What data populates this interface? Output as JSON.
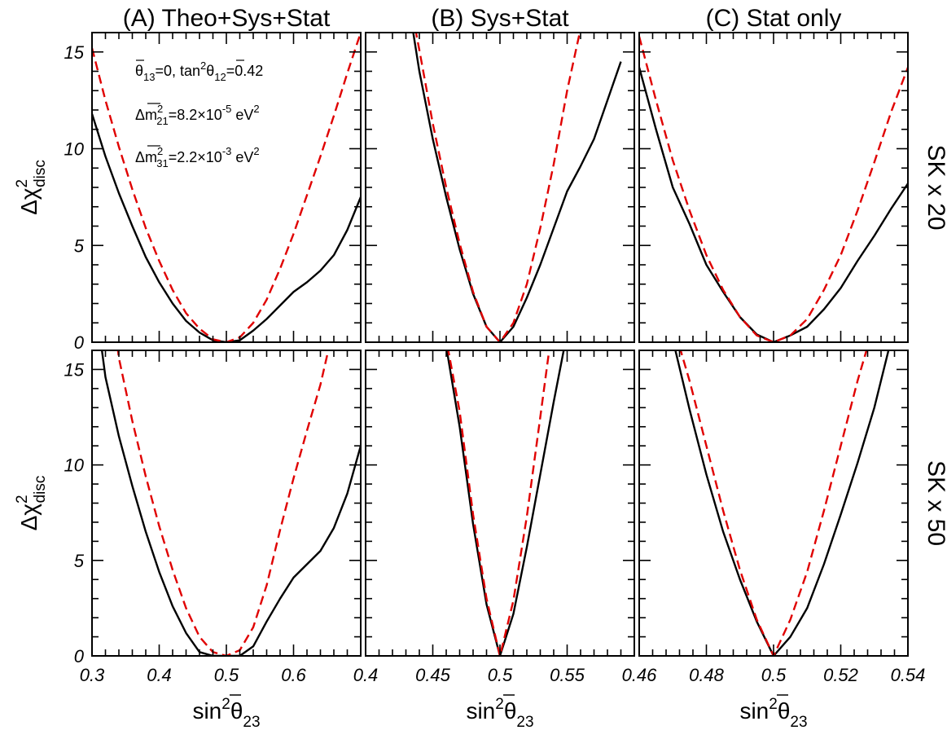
{
  "chart_data": {
    "type": "line",
    "figure_layout": "2 rows x 3 columns",
    "columns": [
      "(A) Theo+Sys+Stat",
      "(B) Sys+Stat",
      "(C) Stat only"
    ],
    "rows": [
      "SK x 20",
      "SK x 50"
    ],
    "xlabel": {
      "main": "sin",
      "sup": "2",
      "var": "θ",
      "sub": "23"
    },
    "ylabel": {
      "main": "Δχ",
      "sup": "2",
      "sub": "disc"
    },
    "ylim": [
      0,
      16
    ],
    "yticks": [
      0,
      5,
      10,
      15
    ],
    "series_styles": [
      {
        "style": "solid",
        "color": "#000000"
      },
      {
        "style": "dashed",
        "color": "#e00000"
      }
    ],
    "annotation": {
      "line1": {
        "theta13": "θ",
        "theta13_sub": "13",
        "theta13_val": "=0,",
        "tan_pre": "tan",
        "tan_sup": "2",
        "theta12": "θ",
        "theta12_sub": "12",
        "theta12_val": "=0.42"
      },
      "line2": {
        "dm": "Δm",
        "sup": "2",
        "sub": "21",
        "val": "=8.2×10",
        "exp": "-5",
        "unit": " eV",
        "unit_sup": "2"
      },
      "line3": {
        "dm": "Δm",
        "sup": "2",
        "sub": "31",
        "val": "=2.2×10",
        "exp": "-3",
        "unit": " eV",
        "unit_sup": "2"
      }
    },
    "panels": [
      {
        "col": 0,
        "row": 0,
        "xlim": [
          0.3,
          0.7
        ],
        "xticks": [
          {
            "v": 0.3,
            "t": "0.3"
          },
          {
            "v": 0.4,
            "t": "0.4"
          },
          {
            "v": 0.5,
            "t": "0.5"
          },
          {
            "v": 0.6,
            "t": "0.6"
          }
        ],
        "solid": [
          [
            0.3,
            11.8
          ],
          [
            0.32,
            9.6
          ],
          [
            0.34,
            7.7
          ],
          [
            0.36,
            6.0
          ],
          [
            0.38,
            4.4
          ],
          [
            0.4,
            3.1
          ],
          [
            0.42,
            2.0
          ],
          [
            0.44,
            1.1
          ],
          [
            0.46,
            0.5
          ],
          [
            0.48,
            0.1
          ],
          [
            0.5,
            0.0
          ],
          [
            0.52,
            0.1
          ],
          [
            0.54,
            0.6
          ],
          [
            0.56,
            1.2
          ],
          [
            0.58,
            1.9
          ],
          [
            0.6,
            2.6
          ],
          [
            0.62,
            3.1
          ],
          [
            0.64,
            3.7
          ],
          [
            0.66,
            4.5
          ],
          [
            0.68,
            5.8
          ],
          [
            0.7,
            7.5
          ]
        ],
        "dashed": [
          [
            0.3,
            15.2
          ],
          [
            0.32,
            12.5
          ],
          [
            0.34,
            10.1
          ],
          [
            0.36,
            7.9
          ],
          [
            0.38,
            5.9
          ],
          [
            0.4,
            4.2
          ],
          [
            0.42,
            2.7
          ],
          [
            0.44,
            1.5
          ],
          [
            0.46,
            0.7
          ],
          [
            0.48,
            0.15
          ],
          [
            0.5,
            0.0
          ],
          [
            0.52,
            0.25
          ],
          [
            0.54,
            1.0
          ],
          [
            0.56,
            2.2
          ],
          [
            0.58,
            3.8
          ],
          [
            0.6,
            5.6
          ],
          [
            0.62,
            7.6
          ],
          [
            0.64,
            9.6
          ],
          [
            0.66,
            11.7
          ],
          [
            0.68,
            13.9
          ],
          [
            0.7,
            16.0
          ]
        ]
      },
      {
        "col": 1,
        "row": 0,
        "xlim": [
          0.4,
          0.6
        ],
        "xticks": [
          {
            "v": 0.4,
            "t": "0.4"
          },
          {
            "v": 0.45,
            "t": "0.45"
          },
          {
            "v": 0.5,
            "t": "0.5"
          },
          {
            "v": 0.55,
            "t": "0.55"
          }
        ],
        "solid": [
          [
            0.435,
            16.2
          ],
          [
            0.44,
            14.0
          ],
          [
            0.45,
            10.5
          ],
          [
            0.46,
            7.5
          ],
          [
            0.47,
            4.8
          ],
          [
            0.48,
            2.5
          ],
          [
            0.49,
            0.8
          ],
          [
            0.5,
            0.0
          ],
          [
            0.51,
            0.8
          ],
          [
            0.52,
            2.3
          ],
          [
            0.53,
            4.0
          ],
          [
            0.54,
            5.9
          ],
          [
            0.55,
            7.8
          ],
          [
            0.56,
            9.1
          ],
          [
            0.57,
            10.5
          ],
          [
            0.58,
            12.5
          ],
          [
            0.59,
            14.5
          ]
        ],
        "dashed": [
          [
            0.437,
            16.2
          ],
          [
            0.44,
            15.1
          ],
          [
            0.45,
            11.3
          ],
          [
            0.46,
            8.0
          ],
          [
            0.47,
            5.1
          ],
          [
            0.48,
            2.6
          ],
          [
            0.49,
            0.8
          ],
          [
            0.5,
            0.0
          ],
          [
            0.51,
            1.0
          ],
          [
            0.52,
            3.0
          ],
          [
            0.53,
            5.9
          ],
          [
            0.54,
            9.2
          ],
          [
            0.55,
            13.0
          ],
          [
            0.56,
            16.2
          ]
        ]
      },
      {
        "col": 2,
        "row": 0,
        "xlim": [
          0.46,
          0.54
        ],
        "xticks": [
          {
            "v": 0.46,
            "t": "0.46"
          },
          {
            "v": 0.48,
            "t": "0.48"
          },
          {
            "v": 0.5,
            "t": "0.5"
          },
          {
            "v": 0.52,
            "t": "0.52"
          },
          {
            "v": 0.54,
            "t": "0.54"
          }
        ],
        "solid": [
          [
            0.46,
            14.2
          ],
          [
            0.465,
            11.0
          ],
          [
            0.47,
            8.0
          ],
          [
            0.475,
            6.1
          ],
          [
            0.48,
            4.0
          ],
          [
            0.485,
            2.6
          ],
          [
            0.49,
            1.3
          ],
          [
            0.495,
            0.4
          ],
          [
            0.5,
            0.0
          ],
          [
            0.505,
            0.35
          ],
          [
            0.51,
            0.8
          ],
          [
            0.515,
            1.7
          ],
          [
            0.52,
            2.8
          ],
          [
            0.525,
            4.2
          ],
          [
            0.53,
            5.5
          ],
          [
            0.535,
            6.9
          ],
          [
            0.54,
            8.2
          ]
        ],
        "dashed": [
          [
            0.46,
            15.8
          ],
          [
            0.465,
            12.5
          ],
          [
            0.47,
            9.4
          ],
          [
            0.475,
            6.8
          ],
          [
            0.48,
            4.5
          ],
          [
            0.485,
            2.7
          ],
          [
            0.49,
            1.3
          ],
          [
            0.495,
            0.35
          ],
          [
            0.5,
            0.0
          ],
          [
            0.505,
            0.35
          ],
          [
            0.51,
            1.2
          ],
          [
            0.515,
            2.7
          ],
          [
            0.52,
            4.5
          ],
          [
            0.525,
            6.8
          ],
          [
            0.53,
            9.3
          ],
          [
            0.535,
            11.9
          ],
          [
            0.54,
            14.2
          ]
        ]
      },
      {
        "col": 0,
        "row": 1,
        "xlim": [
          0.3,
          0.7
        ],
        "xticks": [
          {
            "v": 0.3,
            "t": "0.3"
          },
          {
            "v": 0.4,
            "t": "0.4"
          },
          {
            "v": 0.5,
            "t": "0.5"
          },
          {
            "v": 0.6,
            "t": "0.6"
          }
        ],
        "solid": [
          [
            0.314,
            16.2
          ],
          [
            0.32,
            14.6
          ],
          [
            0.34,
            11.5
          ],
          [
            0.36,
            8.9
          ],
          [
            0.38,
            6.5
          ],
          [
            0.4,
            4.4
          ],
          [
            0.42,
            2.6
          ],
          [
            0.44,
            1.2
          ],
          [
            0.46,
            0.2
          ],
          [
            0.48,
            0.0
          ],
          [
            0.5,
            0.0
          ],
          [
            0.52,
            0.0
          ],
          [
            0.54,
            0.5
          ],
          [
            0.56,
            1.8
          ],
          [
            0.58,
            3.0
          ],
          [
            0.6,
            4.1
          ],
          [
            0.62,
            4.8
          ],
          [
            0.64,
            5.5
          ],
          [
            0.66,
            6.7
          ],
          [
            0.68,
            8.5
          ],
          [
            0.7,
            11.0
          ]
        ],
        "dashed": [
          [
            0.338,
            16.2
          ],
          [
            0.34,
            15.6
          ],
          [
            0.36,
            12.3
          ],
          [
            0.38,
            9.4
          ],
          [
            0.4,
            6.8
          ],
          [
            0.42,
            4.5
          ],
          [
            0.44,
            2.5
          ],
          [
            0.46,
            1.0
          ],
          [
            0.48,
            0.2
          ],
          [
            0.5,
            0.0
          ],
          [
            0.52,
            0.3
          ],
          [
            0.54,
            1.5
          ],
          [
            0.56,
            3.7
          ],
          [
            0.58,
            6.6
          ],
          [
            0.6,
            9.3
          ],
          [
            0.62,
            11.8
          ],
          [
            0.64,
            14.2
          ],
          [
            0.653,
            16.2
          ]
        ]
      },
      {
        "col": 1,
        "row": 1,
        "xlim": [
          0.4,
          0.6
        ],
        "xticks": [
          {
            "v": 0.4,
            "t": "0.4"
          },
          {
            "v": 0.45,
            "t": "0.45"
          },
          {
            "v": 0.5,
            "t": "0.5"
          },
          {
            "v": 0.55,
            "t": "0.55"
          }
        ],
        "solid": [
          [
            0.46,
            16.2
          ],
          [
            0.47,
            12.0
          ],
          [
            0.48,
            6.9
          ],
          [
            0.49,
            2.7
          ],
          [
            0.5,
            0.0
          ],
          [
            0.51,
            2.2
          ],
          [
            0.52,
            5.7
          ],
          [
            0.53,
            9.5
          ],
          [
            0.54,
            13.3
          ],
          [
            0.548,
            16.2
          ]
        ],
        "dashed": [
          [
            0.461,
            16.2
          ],
          [
            0.47,
            12.8
          ],
          [
            0.48,
            7.4
          ],
          [
            0.49,
            3.0
          ],
          [
            0.5,
            0.0
          ],
          [
            0.51,
            2.9
          ],
          [
            0.52,
            7.3
          ],
          [
            0.53,
            12.5
          ],
          [
            0.537,
            16.2
          ]
        ]
      },
      {
        "col": 2,
        "row": 1,
        "xlim": [
          0.46,
          0.54
        ],
        "xticks": [
          {
            "v": 0.46,
            "t": "0.46"
          },
          {
            "v": 0.48,
            "t": "0.48"
          },
          {
            "v": 0.5,
            "t": "0.5"
          },
          {
            "v": 0.52,
            "t": "0.52"
          },
          {
            "v": 0.54,
            "t": "0.54"
          }
        ],
        "solid": [
          [
            0.4705,
            16.2
          ],
          [
            0.475,
            12.9
          ],
          [
            0.48,
            9.5
          ],
          [
            0.485,
            6.5
          ],
          [
            0.49,
            4.0
          ],
          [
            0.495,
            1.8
          ],
          [
            0.5,
            0.0
          ],
          [
            0.505,
            1.0
          ],
          [
            0.51,
            2.5
          ],
          [
            0.515,
            4.8
          ],
          [
            0.52,
            7.4
          ],
          [
            0.525,
            10.1
          ],
          [
            0.53,
            13.0
          ],
          [
            0.5345,
            16.2
          ]
        ],
        "dashed": [
          [
            0.472,
            16.2
          ],
          [
            0.475,
            14.4
          ],
          [
            0.48,
            11.0
          ],
          [
            0.485,
            7.6
          ],
          [
            0.49,
            4.5
          ],
          [
            0.495,
            1.9
          ],
          [
            0.5,
            0.0
          ],
          [
            0.505,
            1.9
          ],
          [
            0.51,
            4.4
          ],
          [
            0.515,
            7.6
          ],
          [
            0.52,
            11.0
          ],
          [
            0.525,
            14.4
          ],
          [
            0.528,
            16.2
          ]
        ]
      }
    ]
  }
}
